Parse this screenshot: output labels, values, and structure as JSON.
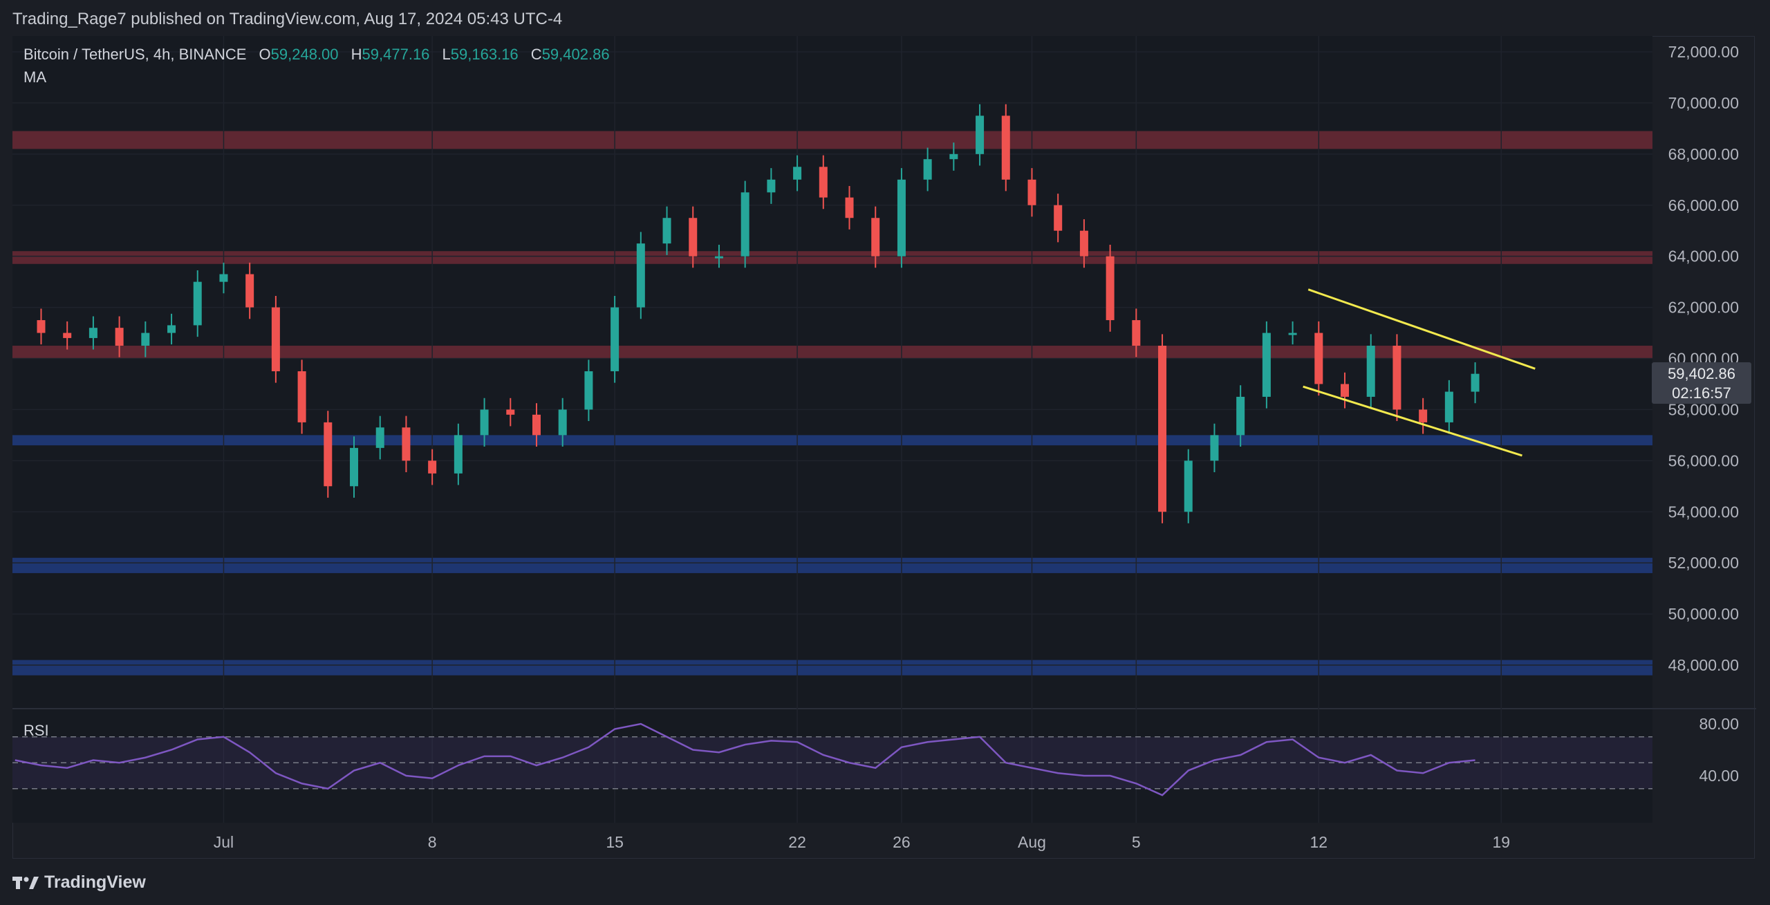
{
  "header": {
    "publish_info": "Trading_Rage7 published on TradingView.com, Aug 17, 2024 05:43 UTC-4"
  },
  "legend": {
    "symbol": "Bitcoin / TetherUS, 4h, BINANCE",
    "open_label": "O",
    "open": "59,248.00",
    "high_label": "H",
    "high": "59,477.16",
    "low_label": "L",
    "low": "59,163.16",
    "close_label": "C",
    "close": "59,402.86",
    "indicator": "MA"
  },
  "price_badge": {
    "price": "59,402.86",
    "countdown": "02:16:57"
  },
  "rsi_panel": {
    "label": "RSI",
    "ticks": [
      "80.00",
      "40.00"
    ]
  },
  "footer": {
    "brand": "TradingView"
  },
  "colors": {
    "background": "#1b1e25",
    "bull": "#26a69a",
    "bear": "#ef5350",
    "resistance_zone": "#6b2a35",
    "support_zone": "#1f3a7a",
    "channel": "#f2e94e",
    "rsi_line": "#7e57c2"
  },
  "chart_data": [
    {
      "type": "candlestick",
      "symbol": "BTCUSDT",
      "interval": "4h",
      "exchange": "BINANCE",
      "ylim": [
        47000,
        72500
      ],
      "y_ticks": [
        "72,000.00",
        "70,000.00",
        "68,000.00",
        "66,000.00",
        "64,000.00",
        "62,000.00",
        "60,000.00",
        "58,000.00",
        "56,000.00",
        "54,000.00",
        "52,000.00",
        "50,000.00",
        "48,000.00"
      ],
      "x_ticks": [
        "Jul",
        "8",
        "15",
        "22",
        "26",
        "Aug",
        "5",
        "12",
        "19"
      ],
      "x_tick_days": [
        30,
        38,
        45,
        52,
        56,
        61,
        65,
        72,
        79
      ],
      "x_range_days": [
        21.9,
        84.8
      ],
      "series": [
        {
          "day": [
            22,
            23,
            24,
            25,
            26,
            27,
            28,
            29,
            30,
            31,
            32,
            33,
            34,
            35,
            36,
            37,
            38,
            39,
            40,
            41,
            42,
            43,
            44,
            45,
            46,
            47,
            48,
            49,
            50,
            51,
            52,
            53,
            54,
            55,
            56,
            57,
            58,
            59,
            60,
            61,
            62,
            63,
            64,
            65,
            66,
            67,
            68,
            69,
            70,
            71,
            72,
            73,
            74,
            75,
            76,
            77,
            78
          ],
          "close": [
            61500,
            61000,
            60800,
            61200,
            60500,
            61000,
            61300,
            63000,
            63300,
            62000,
            59500,
            57500,
            55000,
            56500,
            57300,
            56000,
            55500,
            57000,
            58000,
            57800,
            57000,
            58000,
            59500,
            62000,
            64500,
            65500,
            64000,
            64000,
            66500,
            67000,
            67500,
            66300,
            65500,
            64000,
            67000,
            67800,
            68000,
            69500,
            67000,
            66000,
            65000,
            64000,
            61500,
            60500,
            54000,
            56000,
            57000,
            58500,
            61000,
            61000,
            59000,
            58500,
            60500,
            58000,
            57500,
            58700,
            59400
          ]
        }
      ],
      "zones": {
        "resistance": [
          [
            68200,
            68900
          ],
          [
            63700,
            64200
          ],
          [
            60000,
            60500
          ]
        ],
        "support": [
          [
            56600,
            57000
          ],
          [
            51600,
            52200
          ],
          [
            47600,
            48200
          ]
        ]
      },
      "channel": {
        "upper": [
          {
            "day": 71.6,
            "price": 62700
          },
          {
            "day": 80.3,
            "price": 59600
          }
        ],
        "lower": [
          {
            "day": 71.4,
            "price": 58900
          },
          {
            "day": 79.8,
            "price": 56200
          }
        ]
      }
    },
    {
      "type": "line",
      "title": "RSI",
      "ylim": [
        20,
        100
      ],
      "levels": [
        70,
        50,
        30
      ],
      "series": [
        {
          "day": [
            22,
            23,
            24,
            25,
            26,
            27,
            28,
            29,
            30,
            31,
            32,
            33,
            34,
            35,
            36,
            37,
            38,
            39,
            40,
            41,
            42,
            43,
            44,
            45,
            46,
            47,
            48,
            49,
            50,
            51,
            52,
            53,
            54,
            55,
            56,
            57,
            58,
            59,
            60,
            61,
            62,
            63,
            64,
            65,
            66,
            67,
            68,
            69,
            70,
            71,
            72,
            73,
            74,
            75,
            76,
            77,
            78
          ],
          "values": [
            52,
            48,
            46,
            52,
            50,
            54,
            60,
            68,
            70,
            58,
            42,
            34,
            30,
            44,
            50,
            40,
            38,
            48,
            55,
            55,
            48,
            54,
            62,
            76,
            80,
            70,
            60,
            58,
            64,
            67,
            66,
            56,
            50,
            46,
            62,
            66,
            68,
            70,
            50,
            46,
            42,
            40,
            40,
            34,
            25,
            44,
            52,
            56,
            66,
            68,
            54,
            50,
            56,
            44,
            42,
            50,
            52
          ]
        }
      ]
    }
  ]
}
